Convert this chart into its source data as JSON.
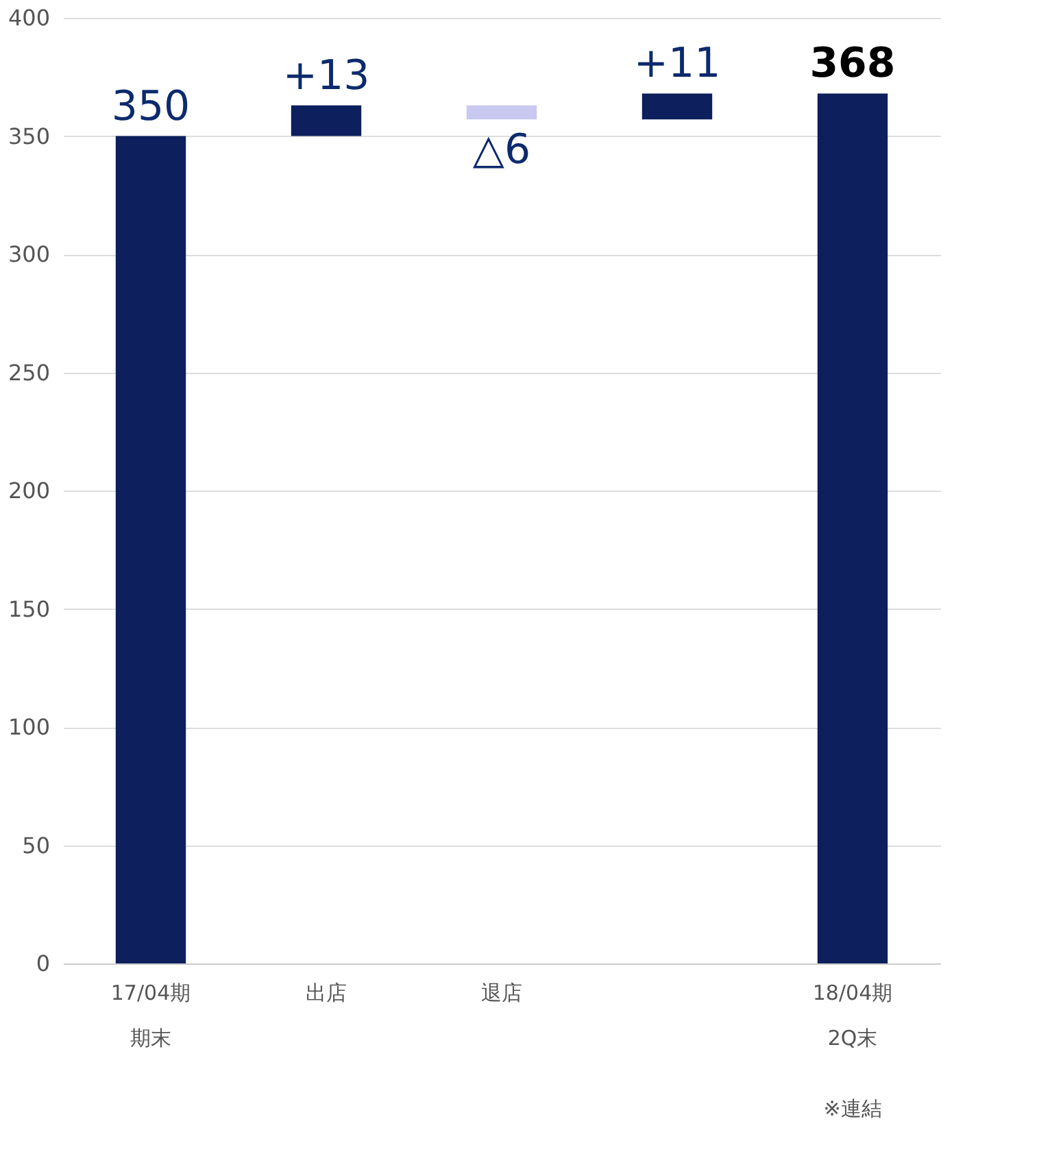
{
  "chart_data": {
    "type": "bar",
    "categories": [
      "17/04期期末",
      "出店",
      "退店",
      null,
      "18/04期2Q末"
    ],
    "annotations": [
      "※連結"
    ],
    "values": [
      350,
      13,
      -6,
      11,
      368
    ],
    "base": [
      0,
      350,
      363,
      357,
      0
    ],
    "colors": [
      "#0d1f5c",
      "#0d1f5c",
      "#c8c8f0",
      "#0d1f5c",
      "#0d1f5c"
    ],
    "value_labels": [
      "350",
      "+13",
      "△6",
      "+11",
      "368"
    ],
    "ylim": [
      0,
      400
    ],
    "yticks": [
      0,
      50,
      100,
      150,
      200,
      250,
      300,
      350,
      400
    ],
    "grid": "y"
  }
}
